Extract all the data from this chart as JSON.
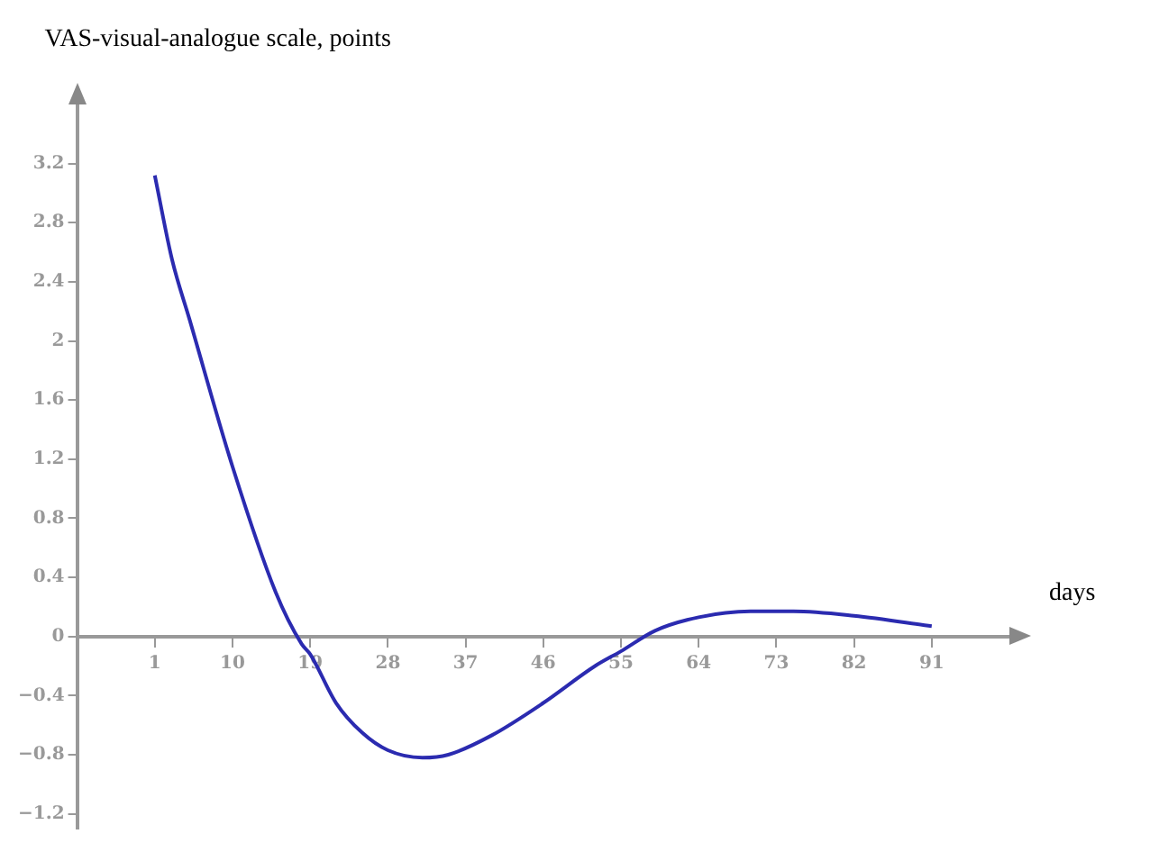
{
  "chart_data": {
    "type": "line",
    "xlabel": "days",
    "ylabel": "VAS-visual-analogue scale, points",
    "x": [
      1,
      3,
      5,
      10,
      15,
      18,
      19,
      22,
      25,
      28,
      32,
      35,
      40,
      46,
      52,
      55,
      59,
      64,
      70,
      75,
      82,
      91
    ],
    "series": [
      {
        "color": "#2b2bb0",
        "values": [
          3.12,
          2.55,
          2.15,
          1.15,
          0.3,
          -0.05,
          -0.12,
          -0.45,
          -0.65,
          -0.77,
          -0.82,
          -0.8,
          -0.67,
          -0.45,
          -0.2,
          -0.1,
          0.04,
          0.13,
          0.17,
          0.17,
          0.14,
          0.07
        ]
      }
    ],
    "xlim": [
      -8,
      100
    ],
    "ylim": [
      -1.3,
      3.6
    ],
    "xticks": [
      1,
      10,
      19,
      28,
      37,
      46,
      55,
      64,
      73,
      82,
      91
    ],
    "yticks": [
      -1.2,
      -0.8,
      -0.4,
      0,
      0.4,
      0.8,
      1.2,
      1.6,
      2,
      2.4,
      2.8,
      3.2
    ],
    "marker": "none",
    "line_style": "solid",
    "legend": false
  }
}
